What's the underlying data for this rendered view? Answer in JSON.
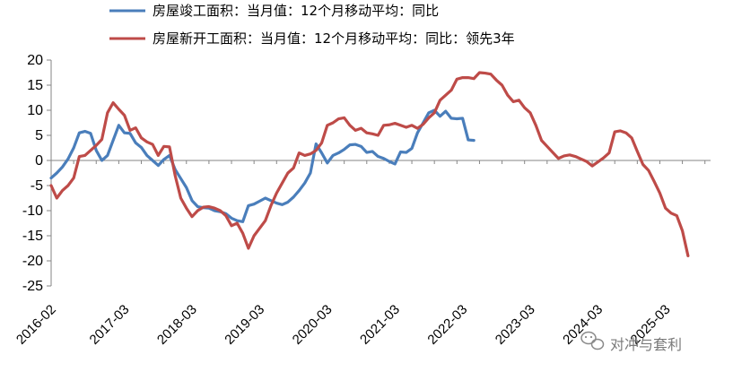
{
  "chart_data": {
    "type": "line",
    "xlabel": "",
    "ylabel": "",
    "ylim": [
      -25,
      20
    ],
    "yticks": [
      -25,
      -20,
      -15,
      -10,
      -5,
      0,
      5,
      10,
      15,
      20
    ],
    "x_tick_labels": [
      "2016-02",
      "2017-03",
      "2018-03",
      "2019-03",
      "2020-03",
      "2021-03",
      "2022-03",
      "2023-03",
      "2024-03",
      "2025-03"
    ],
    "x_tick_index": [
      0,
      13,
      25,
      37,
      49,
      61,
      73,
      85,
      97,
      109
    ],
    "n_points": 118,
    "legend_position": "top",
    "grid": false,
    "series": [
      {
        "name": "房屋竣工面积：当月值：12个月移动平均：同比",
        "color": "#4a7ebb",
        "start_index": 0,
        "values": [
          -3.5,
          -2.5,
          -1.3,
          0.3,
          2.5,
          5.5,
          5.8,
          5.4,
          2,
          0,
          1,
          4,
          7,
          5.5,
          5.4,
          3.5,
          2.6,
          1,
          0,
          -1,
          0.2,
          1,
          -1.8,
          -3.6,
          -5.4,
          -8,
          -9.2,
          -9.4,
          -9.5,
          -10,
          -10.2,
          -10.6,
          -11.5,
          -12,
          -12.2,
          -9,
          -8.7,
          -8.1,
          -7.5,
          -8,
          -8.5,
          -8.8,
          -8.3,
          -7.3,
          -6,
          -4.5,
          -2.5,
          3.3,
          1.5,
          -0.5,
          1,
          1.5,
          2.2,
          3.1,
          3.2,
          2.8,
          1.6,
          1.8,
          0.8,
          0.4,
          -0.2,
          -0.7,
          1.7,
          1.6,
          2.4,
          5.5,
          7.5,
          9.5,
          10,
          8.8,
          9.8,
          8.4,
          8.3,
          8.4,
          4.1,
          4
        ]
      },
      {
        "name": "房屋新开工面积：当月值：12个月移动平均：同比：领先3年",
        "color": "#be4b48",
        "start_index": 0,
        "values": [
          -5,
          -7.5,
          -6,
          -5,
          -3.5,
          0.8,
          1,
          2,
          3,
          4.2,
          9.5,
          11.5,
          10.2,
          9,
          6,
          6.5,
          4.5,
          3.7,
          3.2,
          1,
          2.8,
          2.7,
          -3,
          -7.5,
          -9.5,
          -11.2,
          -10,
          -9.3,
          -9.2,
          -9.5,
          -10,
          -11,
          -13,
          -12.5,
          -14.5,
          -17.5,
          -15,
          -13.5,
          -12,
          -9,
          -6.5,
          -4.5,
          -2.5,
          -1.5,
          1.5,
          1,
          1.3,
          2,
          3.5,
          7,
          7.5,
          8.3,
          8.5,
          7,
          6,
          6.4,
          5.5,
          5.3,
          5,
          7,
          7.1,
          7.4,
          7,
          6.6,
          7,
          6.4,
          7.2,
          8.5,
          9.5,
          12,
          13,
          14,
          16.2,
          16.5,
          16.5,
          16.3,
          17.5,
          17.4,
          17.2,
          16,
          15,
          13,
          11.7,
          12,
          10.5,
          9.5,
          7,
          4,
          2.8,
          1.6,
          0.4,
          0.9,
          1.1,
          0.8,
          0.3,
          -0.2,
          -1.1,
          -0.3,
          0.5,
          1.5,
          5.7,
          5.9,
          5.5,
          4.5,
          1.8,
          -0.8,
          -2,
          -4.2,
          -6.5,
          -9.5,
          -10.5,
          -11,
          -14,
          -19
        ]
      }
    ]
  },
  "watermark": {
    "text": "对冲与套利",
    "icon": "wechat-icon"
  }
}
